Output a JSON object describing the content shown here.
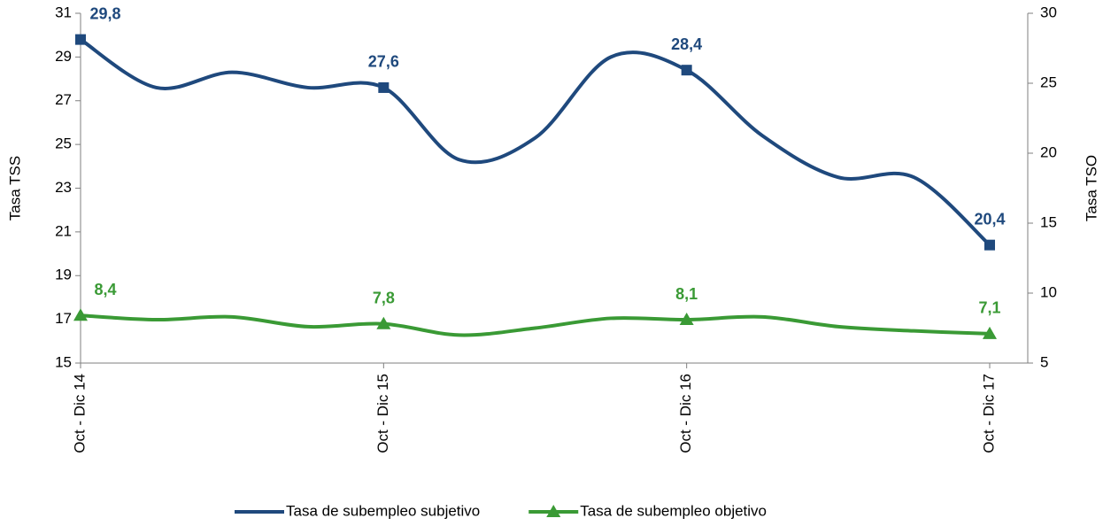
{
  "chart_data": {
    "type": "line",
    "categories": [
      "Oct - Dic 14",
      null,
      null,
      null,
      "Oct - Dic 15",
      null,
      null,
      null,
      "Oct - Dic 16",
      null,
      null,
      null,
      "Oct - Dic 17"
    ],
    "ylabel": "Tasa TSS",
    "y2label": "Tasa TSO",
    "ylim": [
      15,
      31
    ],
    "yticks": [
      15,
      17,
      19,
      21,
      23,
      25,
      27,
      29,
      31
    ],
    "y2lim": [
      5,
      30
    ],
    "y2ticks": [
      5,
      10,
      15,
      20,
      25,
      30
    ],
    "legend": "bottom",
    "series": [
      {
        "name": "Tasa de subempleo subjetivo",
        "color": "#1f497d",
        "marker": "square",
        "values": [
          29.8,
          27.6,
          28.3,
          27.6,
          27.6,
          24.3,
          25.3,
          29.0,
          28.4,
          25.4,
          23.5,
          23.5,
          20.4
        ],
        "value_labels": [
          "29,8",
          null,
          null,
          null,
          "27,6",
          null,
          null,
          null,
          "28,4",
          null,
          null,
          null,
          "20,4"
        ]
      },
      {
        "name": "Tasa de subempleo objetivo",
        "color": "#3a9a35",
        "marker": "triangle",
        "axis": "y2",
        "values": [
          8.4,
          8.1,
          8.3,
          7.6,
          7.8,
          7.0,
          7.5,
          8.2,
          8.1,
          8.3,
          7.6,
          7.3,
          7.1
        ],
        "value_labels": [
          "8,4",
          null,
          null,
          null,
          "7,8",
          null,
          null,
          null,
          "8,1",
          null,
          null,
          null,
          "7,1"
        ]
      }
    ]
  }
}
